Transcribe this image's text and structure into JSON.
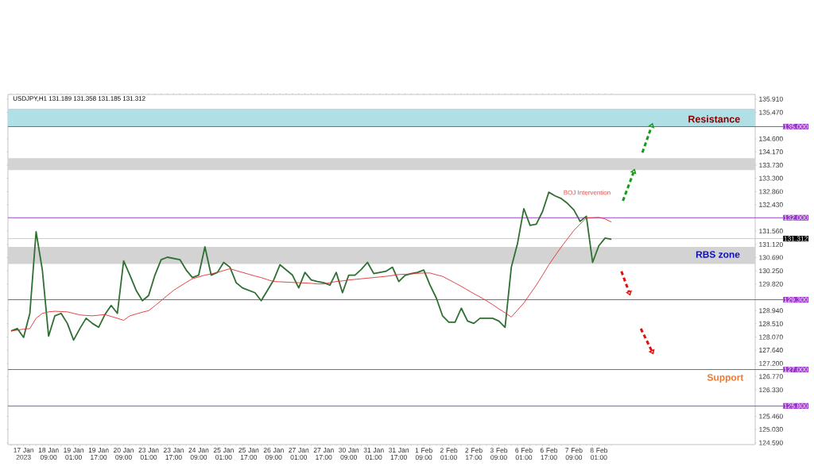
{
  "chart_data": {
    "type": "line",
    "categories": [
      null,
      null,
      "17 Jan 2023",
      null,
      null,
      null,
      "18 Jan 09:00",
      null,
      null,
      null,
      "19 Jan 01:00",
      null,
      null,
      null,
      "19 Jan 17:00",
      null,
      null,
      null,
      "20 Jan 09:00",
      null,
      null,
      null,
      "23 Jan 01:00",
      null,
      null,
      null,
      "23 Jan 17:00",
      null,
      null,
      null,
      "24 Jan 09:00",
      null,
      null,
      null,
      "25 Jan 01:00",
      null,
      null,
      null,
      "25 Jan 17:00",
      null,
      null,
      null,
      "26 Jan 09:00",
      null,
      null,
      null,
      "27 Jan 01:00",
      null,
      null,
      null,
      "27 Jan 17:00",
      null,
      null,
      null,
      "30 Jan 09:00",
      null,
      null,
      null,
      "31 Jan 01:00",
      null,
      null,
      null,
      "31 Jan 17:00",
      null,
      null,
      null,
      "1 Feb 09:00",
      null,
      null,
      null,
      "2 Feb 01:00",
      null,
      null,
      null,
      "2 Feb 17:00",
      null,
      null,
      null,
      "3 Feb 09:00",
      null,
      null,
      null,
      "6 Feb 01:00",
      null,
      null,
      null,
      "6 Feb 17:00",
      null,
      null,
      null,
      "7 Feb 09:00",
      null,
      null,
      null,
      "8 Feb 01:00",
      null,
      null
    ],
    "ylim": [
      124.53,
      136.06
    ],
    "yticks": [
      {
        "value": 135.91,
        "label": "135.910"
      },
      {
        "value": 135.47,
        "label": "135.470"
      },
      {
        "value": 134.6,
        "label": "134.600"
      },
      {
        "value": 134.17,
        "label": "134.170"
      },
      {
        "value": 133.73,
        "label": "133.730"
      },
      {
        "value": 133.3,
        "label": "133.300"
      },
      {
        "value": 132.86,
        "label": "132.860"
      },
      {
        "value": 132.43,
        "label": "132.430"
      },
      {
        "value": 131.56,
        "label": "131.560"
      },
      {
        "value": 131.12,
        "label": "131.120"
      },
      {
        "value": 130.69,
        "label": "130.690"
      },
      {
        "value": 130.25,
        "label": "130.250"
      },
      {
        "value": 129.82,
        "label": "129.820"
      },
      {
        "value": 128.94,
        "label": "128.940"
      },
      {
        "value": 128.51,
        "label": "128.510"
      },
      {
        "value": 128.07,
        "label": "128.070"
      },
      {
        "value": 127.64,
        "label": "127.640"
      },
      {
        "value": 127.2,
        "label": "127.200"
      },
      {
        "value": 126.77,
        "label": "126.770"
      },
      {
        "value": 126.33,
        "label": "126.330"
      },
      {
        "value": 125.46,
        "label": "125.460"
      },
      {
        "value": 125.03,
        "label": "125.030"
      },
      {
        "value": 124.59,
        "label": "124.590"
      }
    ],
    "bands": [
      {
        "axis": "y",
        "from": 135.0,
        "to": 135.59,
        "color": "#b0e0e6"
      },
      {
        "axis": "y",
        "from": 133.57,
        "to": 133.96,
        "color": "#d3d3d3"
      },
      {
        "axis": "y",
        "from": 130.48,
        "to": 131.04,
        "color": "#d3d3d3"
      }
    ],
    "ref_lines": [
      {
        "axis": "y",
        "value": 135.0,
        "label": "135.000",
        "color": "#9933cc"
      },
      {
        "axis": "y",
        "value": 132.0,
        "label": "132.000",
        "color": "#9933cc"
      },
      {
        "axis": "y",
        "value": 131.312,
        "label": "131.312",
        "color": "#c8c8c8"
      },
      {
        "axis": "y",
        "value": 129.3,
        "label": "129.300",
        "color": "#9933cc"
      },
      {
        "axis": "y",
        "value": 127.0,
        "label": "127.000",
        "color": "#9933cc"
      },
      {
        "axis": "y",
        "value": 125.8,
        "label": "125.800",
        "color": "#9933cc"
      }
    ],
    "annotations": [
      "USDJPY,H1 131.189 131.358 131.185 131.312",
      "BOJ Intervention",
      "Resistance",
      "RBS zone",
      "Support"
    ],
    "series": [
      {
        "color": "#2f6f32",
        "values": [
          128.27,
          128.35,
          128.06,
          128.85,
          131.54,
          130.28,
          128.1,
          128.77,
          128.85,
          128.52,
          127.97,
          128.35,
          128.69,
          128.52,
          128.39,
          128.81,
          129.11,
          128.85,
          130.58,
          130.11,
          129.61,
          129.27,
          129.44,
          130.11,
          130.62,
          130.7,
          130.66,
          130.62,
          130.28,
          130.03,
          130.11,
          131.04,
          130.11,
          130.2,
          130.53,
          130.37,
          129.86,
          129.69,
          129.61,
          129.53,
          129.27,
          129.61,
          129.95,
          130.45,
          130.28,
          130.11,
          129.69,
          130.2,
          129.95,
          129.9,
          129.86,
          129.78,
          130.2,
          129.53,
          130.11,
          130.11,
          130.3,
          130.53,
          130.16,
          130.2,
          130.24,
          130.37,
          129.9,
          130.1,
          130.16,
          130.2,
          130.28,
          129.78,
          129.36,
          128.77,
          128.56,
          128.56,
          129.02,
          128.6,
          128.52,
          128.69,
          128.69,
          128.69,
          128.6,
          128.39,
          130.37,
          131.16,
          132.3,
          131.75,
          131.79,
          132.21,
          132.84,
          132.72,
          132.63,
          132.47,
          132.26,
          131.88,
          132.05,
          130.53,
          131.08,
          131.33,
          131.29
        ]
      },
      {
        "color": "#e03030",
        "values": [
          128.27,
          128.3,
          128.33,
          128.35,
          128.69,
          128.85,
          128.9,
          128.92,
          128.91,
          128.9,
          128.85,
          128.8,
          128.78,
          128.77,
          128.79,
          128.81,
          128.75,
          128.69,
          128.62,
          128.77,
          128.83,
          128.89,
          128.94,
          129.1,
          129.27,
          129.44,
          129.61,
          129.74,
          129.87,
          129.99,
          130.05,
          130.11,
          130.15,
          130.2,
          130.26,
          130.32,
          130.26,
          130.2,
          130.14,
          130.08,
          130.03,
          129.96,
          129.9,
          129.89,
          129.88,
          129.87,
          129.86,
          129.85,
          129.84,
          129.82,
          129.82,
          129.86,
          129.9,
          129.92,
          129.95,
          129.97,
          129.99,
          130.01,
          130.03,
          130.05,
          130.07,
          130.1,
          130.13,
          130.14,
          130.15,
          130.17,
          130.18,
          130.18,
          130.12,
          130.07,
          129.96,
          129.85,
          129.74,
          129.62,
          129.5,
          129.39,
          129.27,
          129.14,
          129.0,
          128.87,
          128.73,
          128.96,
          129.19,
          129.49,
          129.78,
          130.11,
          130.45,
          130.75,
          131.04,
          131.31,
          131.58,
          131.79,
          131.99,
          132.0,
          132.01,
          131.96,
          131.86
        ]
      }
    ]
  }
}
